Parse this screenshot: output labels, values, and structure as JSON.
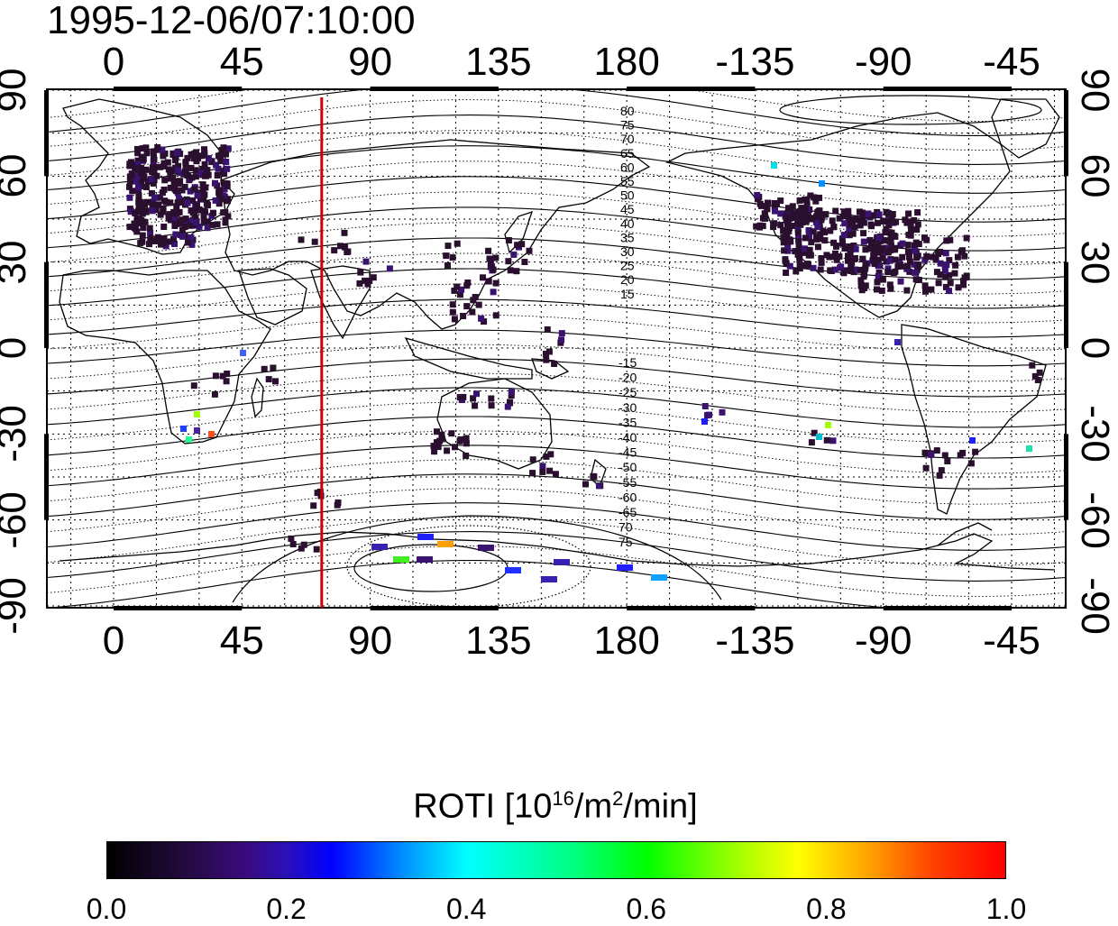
{
  "title": "1995-12-06/07:10:00",
  "map": {
    "projection": "equirectangular",
    "longitude_ticks_top": [
      "0",
      "45",
      "90",
      "135",
      "180",
      "-135",
      "-90",
      "-45"
    ],
    "longitude_ticks_bottom": [
      "0",
      "45",
      "90",
      "135",
      "180",
      "-135",
      "-90",
      "-45"
    ],
    "latitude_ticks_left": [
      "90",
      "60",
      "30",
      "0",
      "-30",
      "-60",
      "-90"
    ],
    "latitude_ticks_right": [
      "90",
      "60",
      "30",
      "0",
      "-30",
      "-60",
      "-90"
    ],
    "terminator_longitude_deg": 73,
    "terminator_color": "#cc0000",
    "contour_labels_north": [
      "80",
      "75",
      "70",
      "65",
      "60",
      "55",
      "50",
      "45",
      "40",
      "35",
      "30",
      "25",
      "20",
      "15"
    ],
    "contour_labels_south": [
      "-15",
      "-20",
      "-25",
      "-30",
      "-35",
      "-40",
      "-45",
      "-50",
      "-55",
      "-60",
      "-65",
      "70",
      "75"
    ]
  },
  "colorbar": {
    "title_prefix": "ROTI  [10",
    "title_sup1": "16",
    "title_mid": "/m",
    "title_sup2": "2",
    "title_suffix": "/min]",
    "ticks": [
      "0.0",
      "0.2",
      "0.4",
      "0.6",
      "0.8",
      "1.0"
    ],
    "range": [
      0.0,
      1.0
    ],
    "colormap": [
      "#000000",
      "#3a0a78",
      "#0000ff",
      "#00ffff",
      "#00ff00",
      "#ffff00",
      "#ff0000"
    ]
  }
}
